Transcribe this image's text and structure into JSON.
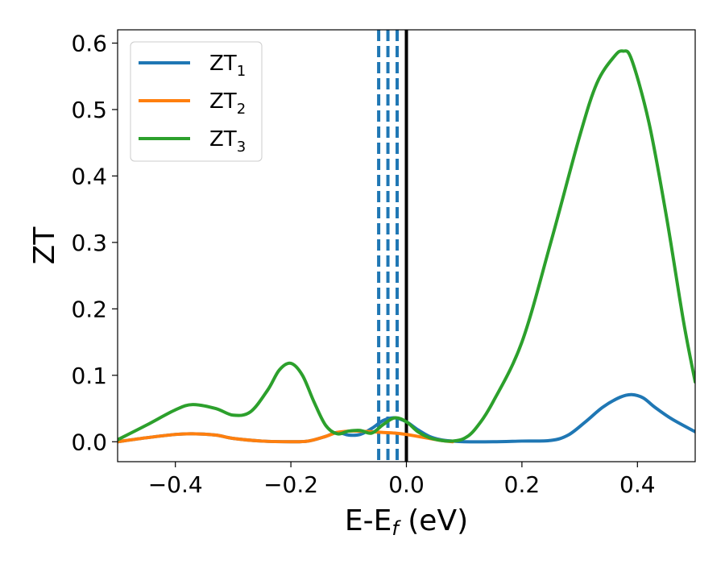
{
  "chart_data": {
    "type": "line",
    "xlabel": "E-E",
    "xlabel_sub": "f",
    "xlabel_unit": " (eV)",
    "ylabel": "ZT",
    "xlim": [
      -0.5,
      0.5
    ],
    "ylim": [
      -0.03,
      0.62
    ],
    "grid": false,
    "legend_position": "top-left",
    "x_ticks": [
      -0.4,
      -0.2,
      0.0,
      0.2,
      0.4
    ],
    "x_tick_labels": [
      "−0.4",
      "−0.2",
      "0.0",
      "0.2",
      "0.4"
    ],
    "y_ticks": [
      0.0,
      0.1,
      0.2,
      0.3,
      0.4,
      0.5,
      0.6
    ],
    "y_tick_labels": [
      "0.0",
      "0.1",
      "0.2",
      "0.3",
      "0.4",
      "0.5",
      "0.6"
    ],
    "vertical_lines": [
      {
        "x": -0.048,
        "style": "dashed",
        "color": "#1f77b4"
      },
      {
        "x": -0.032,
        "style": "dashed",
        "color": "#1f77b4"
      },
      {
        "x": -0.016,
        "style": "dashed",
        "color": "#1f77b4"
      },
      {
        "x": 0.0,
        "style": "solid",
        "color": "#000000"
      }
    ],
    "series": [
      {
        "name": "ZT",
        "name_sub": "1",
        "color": "#1f77b4",
        "x": [
          -0.5,
          -0.45,
          -0.4,
          -0.37,
          -0.33,
          -0.3,
          -0.25,
          -0.2,
          -0.17,
          -0.14,
          -0.12,
          -0.1,
          -0.08,
          -0.06,
          -0.04,
          -0.02,
          0.0,
          0.02,
          0.04,
          0.06,
          0.08,
          0.1,
          0.15,
          0.2,
          0.25,
          0.28,
          0.31,
          0.34,
          0.37,
          0.39,
          0.41,
          0.43,
          0.46,
          0.5
        ],
        "y": [
          0.0,
          0.006,
          0.011,
          0.012,
          0.01,
          0.005,
          0.001,
          0.0,
          0.001,
          0.008,
          0.014,
          0.01,
          0.011,
          0.02,
          0.032,
          0.036,
          0.03,
          0.018,
          0.008,
          0.003,
          0.001,
          0.0,
          0.0,
          0.001,
          0.002,
          0.01,
          0.03,
          0.052,
          0.067,
          0.071,
          0.066,
          0.052,
          0.034,
          0.015
        ]
      },
      {
        "name": "ZT",
        "name_sub": "2",
        "color": "#ff7f0e",
        "x": [
          -0.5,
          -0.45,
          -0.4,
          -0.37,
          -0.33,
          -0.3,
          -0.25,
          -0.2,
          -0.17,
          -0.14,
          -0.12,
          -0.1,
          -0.08,
          -0.06,
          -0.04,
          -0.02,
          0.0,
          0.02,
          0.04,
          0.06,
          0.08
        ],
        "y": [
          0.0,
          0.006,
          0.011,
          0.012,
          0.01,
          0.005,
          0.001,
          0.0,
          0.001,
          0.008,
          0.014,
          0.016,
          0.016,
          0.015,
          0.014,
          0.013,
          0.011,
          0.008,
          0.005,
          0.002,
          0.0
        ]
      },
      {
        "name": "ZT",
        "name_sub": "3",
        "color": "#2ca02c",
        "x": [
          -0.5,
          -0.45,
          -0.4,
          -0.37,
          -0.33,
          -0.3,
          -0.27,
          -0.24,
          -0.22,
          -0.2,
          -0.18,
          -0.16,
          -0.14,
          -0.12,
          -0.1,
          -0.08,
          -0.06,
          -0.04,
          -0.02,
          0.0,
          0.02,
          0.04,
          0.06,
          0.08,
          0.1,
          0.12,
          0.15,
          0.2,
          0.25,
          0.3,
          0.33,
          0.36,
          0.375,
          0.39,
          0.42,
          0.45,
          0.48,
          0.5
        ],
        "y": [
          0.003,
          0.025,
          0.048,
          0.056,
          0.05,
          0.04,
          0.045,
          0.078,
          0.108,
          0.118,
          0.1,
          0.06,
          0.025,
          0.012,
          0.016,
          0.017,
          0.013,
          0.026,
          0.036,
          0.03,
          0.015,
          0.006,
          0.002,
          0.001,
          0.005,
          0.02,
          0.06,
          0.15,
          0.3,
          0.46,
          0.54,
          0.58,
          0.588,
          0.575,
          0.48,
          0.34,
          0.18,
          0.09
        ]
      }
    ]
  }
}
